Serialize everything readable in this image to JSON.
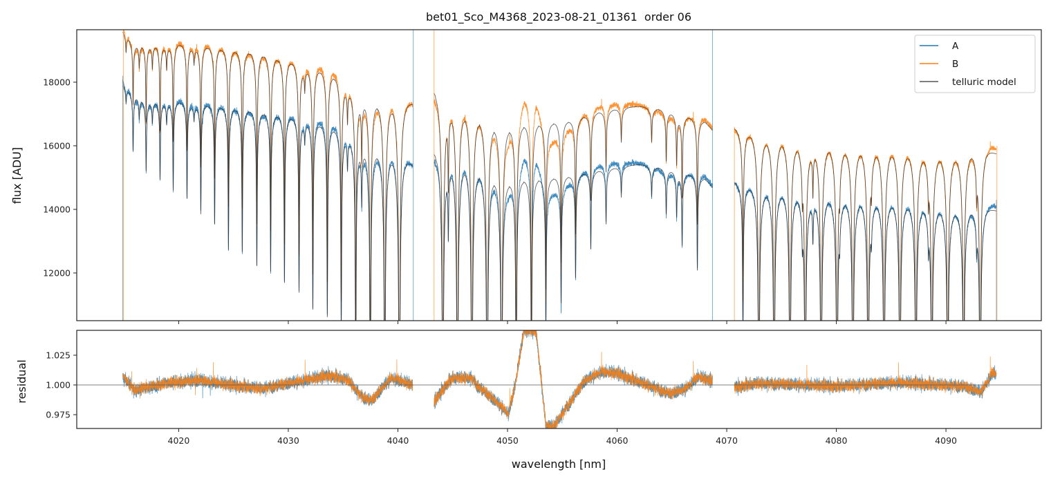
{
  "chart_data": [
    {
      "type": "line",
      "panel": "flux",
      "title": "bet01_Sco_M4368_2023-08-21_01361  order 06",
      "xlabel": "",
      "ylabel": "flux [ADU]",
      "xlim": [
        4010.7,
        4098.7
      ],
      "ylim": [
        10500,
        19650
      ],
      "xticks": [
        4020,
        4030,
        4040,
        4050,
        4060,
        4070,
        4080,
        4090
      ],
      "yticks": [
        12000,
        14000,
        16000,
        18000
      ],
      "ytick_labels": [
        "12000",
        "14000",
        "16000",
        "18000"
      ],
      "grid": false,
      "legend": {
        "placement": "top-right",
        "entries": [
          {
            "label": "A",
            "color": "#1f77b4"
          },
          {
            "label": "B",
            "color": "#ff7f0e"
          },
          {
            "label": "telluric model",
            "color": "#555555"
          }
        ]
      },
      "segments": [
        [
          4014.9,
          4041.35
        ],
        [
          4043.3,
          4068.7
        ],
        [
          4070.7,
          4094.6
        ]
      ],
      "continuum": {
        "A": [
          [
            4014.9,
            18000
          ],
          [
            4016.9,
            17600
          ],
          [
            4021.5,
            17450
          ],
          [
            4027.6,
            17200
          ],
          [
            4031.6,
            16980
          ],
          [
            4034.8,
            16650
          ],
          [
            4037.3,
            16150
          ],
          [
            4040.4,
            15850
          ],
          [
            4041.35,
            15450
          ],
          [
            4043.3,
            15950
          ],
          [
            4044,
            15900
          ],
          [
            4046,
            15700
          ],
          [
            4048,
            15420
          ],
          [
            4050,
            15150
          ],
          [
            4052,
            15150
          ],
          [
            4054,
            15100
          ],
          [
            4056,
            15150
          ],
          [
            4058,
            15250
          ],
          [
            4060,
            15350
          ],
          [
            4062,
            15420
          ],
          [
            4064,
            15350
          ],
          [
            4066,
            15250
          ],
          [
            4068,
            15000
          ],
          [
            4068.7,
            14700
          ],
          [
            4070.7,
            14900
          ],
          [
            4072,
            14850
          ],
          [
            4076,
            14700
          ],
          [
            4080,
            14550
          ],
          [
            4084,
            14450
          ],
          [
            4088,
            14300
          ],
          [
            4091,
            14150
          ],
          [
            4093,
            14250
          ],
          [
            4094.6,
            14000
          ]
        ],
        "B": [
          [
            4014.9,
            19700
          ],
          [
            4016,
            19400
          ],
          [
            4021.5,
            19300
          ],
          [
            4027.6,
            19050
          ],
          [
            4031.6,
            18700
          ],
          [
            4033.6,
            18500
          ],
          [
            4034.8,
            18300
          ],
          [
            4036,
            17950
          ],
          [
            4038,
            17700
          ],
          [
            4040.4,
            17550
          ],
          [
            4041.35,
            17400
          ],
          [
            4043.3,
            17900
          ],
          [
            4044,
            17800
          ],
          [
            4046,
            17450
          ],
          [
            4048,
            17150
          ],
          [
            4050,
            16900
          ],
          [
            4052,
            16900
          ],
          [
            4054,
            16850
          ],
          [
            4056,
            16900
          ],
          [
            4058,
            17100
          ],
          [
            4060,
            17200
          ],
          [
            4062,
            17250
          ],
          [
            4064,
            17200
          ],
          [
            4066,
            17050
          ],
          [
            4068,
            16800
          ],
          [
            4068.7,
            16500
          ],
          [
            4070.7,
            16600
          ],
          [
            4072,
            16550
          ],
          [
            4076,
            16350
          ],
          [
            4080,
            16200
          ],
          [
            4084,
            16100
          ],
          [
            4088,
            15950
          ],
          [
            4091,
            15900
          ],
          [
            4093,
            16100
          ],
          [
            4094.6,
            15800
          ]
        ]
      },
      "telluric_lines": [
        [
          4015.2,
          0.02
        ],
        [
          4015.84,
          0.092
        ],
        [
          4016.4,
          0.03
        ],
        [
          4017.03,
          0.117
        ],
        [
          4017.6,
          0.03
        ],
        [
          4018.3,
          0.131
        ],
        [
          4018.9,
          0.03
        ],
        [
          4019.5,
          0.15
        ],
        [
          4020.76,
          0.166
        ],
        [
          4021.4,
          0.02
        ],
        [
          4022.02,
          0.193
        ],
        [
          4023.28,
          0.214
        ],
        [
          4024.54,
          0.264
        ],
        [
          4025.8,
          0.268
        ],
        [
          4027.13,
          0.295
        ],
        [
          4028.39,
          0.305
        ],
        [
          4029.65,
          0.328
        ],
        [
          4030.98,
          0.345
        ],
        [
          4031.5,
          0.03
        ],
        [
          4032.24,
          0.387
        ],
        [
          4033.56,
          0.4
        ],
        [
          4034.83,
          0.43
        ],
        [
          4035.4,
          0.05
        ],
        [
          4036.15,
          0.6
        ],
        [
          4036.7,
          0.1
        ],
        [
          4037.48,
          0.8
        ],
        [
          4038.8,
          1.0
        ],
        [
          4040.13,
          1.2
        ],
        [
          4044.1,
          1.2
        ],
        [
          4044.6,
          0.13
        ],
        [
          4045.43,
          1.2
        ],
        [
          4046.75,
          1.2
        ],
        [
          4048.14,
          1.2
        ],
        [
          4049.46,
          1.2
        ],
        [
          4050.79,
          0.7
        ],
        [
          4052.18,
          0.6
        ],
        [
          4053.5,
          0.33
        ],
        [
          4054.89,
          0.27
        ],
        [
          4056.21,
          0.21
        ],
        [
          4057.6,
          0.15
        ],
        [
          4058.99,
          0.1
        ],
        [
          4060.38,
          0.05
        ],
        [
          4063.15,
          0.05
        ],
        [
          4064.48,
          0.08
        ],
        [
          4065.43,
          0.08
        ],
        [
          4065.93,
          0.14
        ],
        [
          4067.32,
          0.19
        ],
        [
          4071.48,
          0.35
        ],
        [
          4072.93,
          1.0
        ],
        [
          4074.32,
          1.0
        ],
        [
          4075.77,
          1.0
        ],
        [
          4076.9,
          0.06
        ],
        [
          4077.16,
          1.0
        ],
        [
          4077.86,
          0.08
        ],
        [
          4078.61,
          1.0
        ],
        [
          4080.06,
          1.0
        ],
        [
          4080.3,
          0.05
        ],
        [
          4081.51,
          1.0
        ],
        [
          4082.9,
          1.0
        ],
        [
          4083.2,
          0.05
        ],
        [
          4084.35,
          1.0
        ],
        [
          4085.8,
          1.0
        ],
        [
          4087.26,
          1.0
        ],
        [
          4088.4,
          0.06
        ],
        [
          4088.71,
          1.0
        ],
        [
          4090.16,
          1.0
        ],
        [
          4091.61,
          1.0
        ],
        [
          4092.8,
          0.06
        ],
        [
          4093.12,
          1.0
        ]
      ],
      "edge_spikes": [
        {
          "series": "A",
          "x": 4014.9,
          "y": [
            10500,
            18200
          ]
        },
        {
          "series": "B",
          "x": 4014.95,
          "y": [
            10500,
            19650
          ]
        },
        {
          "series": "A",
          "x": 4041.4,
          "y": [
            10500,
            19650
          ]
        },
        {
          "series": "B",
          "x": 4043.3,
          "y": [
            10500,
            19650
          ]
        },
        {
          "series": "A",
          "x": 4068.7,
          "y": [
            10500,
            19650
          ]
        },
        {
          "series": "B",
          "x": 4070.7,
          "y": [
            10500,
            16600
          ]
        },
        {
          "series": "A",
          "x": 4094.6,
          "y": [
            10500,
            14300
          ]
        },
        {
          "series": "B",
          "x": 4094.65,
          "y": [
            10500,
            16000
          ]
        }
      ]
    },
    {
      "type": "line",
      "panel": "residual",
      "xlabel": "wavelength [nm]",
      "ylabel": "residual",
      "xlim": [
        4010.7,
        4098.7
      ],
      "ylim": [
        0.9634,
        1.0459
      ],
      "xticks": [
        4020,
        4030,
        4040,
        4050,
        4060,
        4070,
        4080,
        4090
      ],
      "xtick_labels": [
        "4020",
        "4030",
        "4040",
        "4050",
        "4060",
        "4070",
        "4080",
        "4090"
      ],
      "yticks": [
        0.975,
        1.0,
        1.025
      ],
      "ytick_labels": [
        "0.975",
        "1.000",
        "1.025"
      ],
      "reference_line": 1.0,
      "noise_std": 0.0028,
      "residual_trend": [
        [
          4014.9,
          1.007
        ],
        [
          4016.0,
          0.9955
        ],
        [
          4019.1,
          1.002
        ],
        [
          4021.9,
          1.004
        ],
        [
          4024.7,
          1.0
        ],
        [
          4027.6,
          0.997
        ],
        [
          4030.4,
          1.002
        ],
        [
          4033.8,
          1.008
        ],
        [
          4035.5,
          1.004
        ],
        [
          4036.6,
          0.991
        ],
        [
          4037.6,
          0.9865
        ],
        [
          4038.8,
          1.0
        ],
        [
          4039.4,
          1.006
        ],
        [
          4041.35,
          1.0
        ],
        [
          4043.3,
          0.985
        ],
        [
          4044.2,
          0.998
        ],
        [
          4045.0,
          1.006
        ],
        [
          4046.7,
          1.006
        ],
        [
          4047.3,
          0.999
        ],
        [
          4048.7,
          0.988
        ],
        [
          4050.1,
          0.976
        ],
        [
          4050.7,
          1.0
        ],
        [
          4051.5,
          1.046
        ],
        [
          4052.6,
          1.046
        ],
        [
          4053.5,
          0.966
        ],
        [
          4054.2,
          0.965
        ],
        [
          4055.6,
          0.984
        ],
        [
          4057.0,
          1.003
        ],
        [
          4058.5,
          1.011
        ],
        [
          4059.9,
          1.01
        ],
        [
          4062.8,
          1.0
        ],
        [
          4064.8,
          0.9925
        ],
        [
          4066.2,
          0.9965
        ],
        [
          4067.4,
          1.007
        ],
        [
          4068.7,
          1.003
        ],
        [
          4070.7,
          0.998
        ],
        [
          4072.8,
          1.0015
        ],
        [
          4080.0,
          0.999
        ],
        [
          4085.7,
          1.002
        ],
        [
          4091.5,
          0.999
        ],
        [
          4093.2,
          0.994
        ],
        [
          4094.3,
          1.011
        ],
        [
          4094.6,
          1.008
        ]
      ]
    }
  ]
}
